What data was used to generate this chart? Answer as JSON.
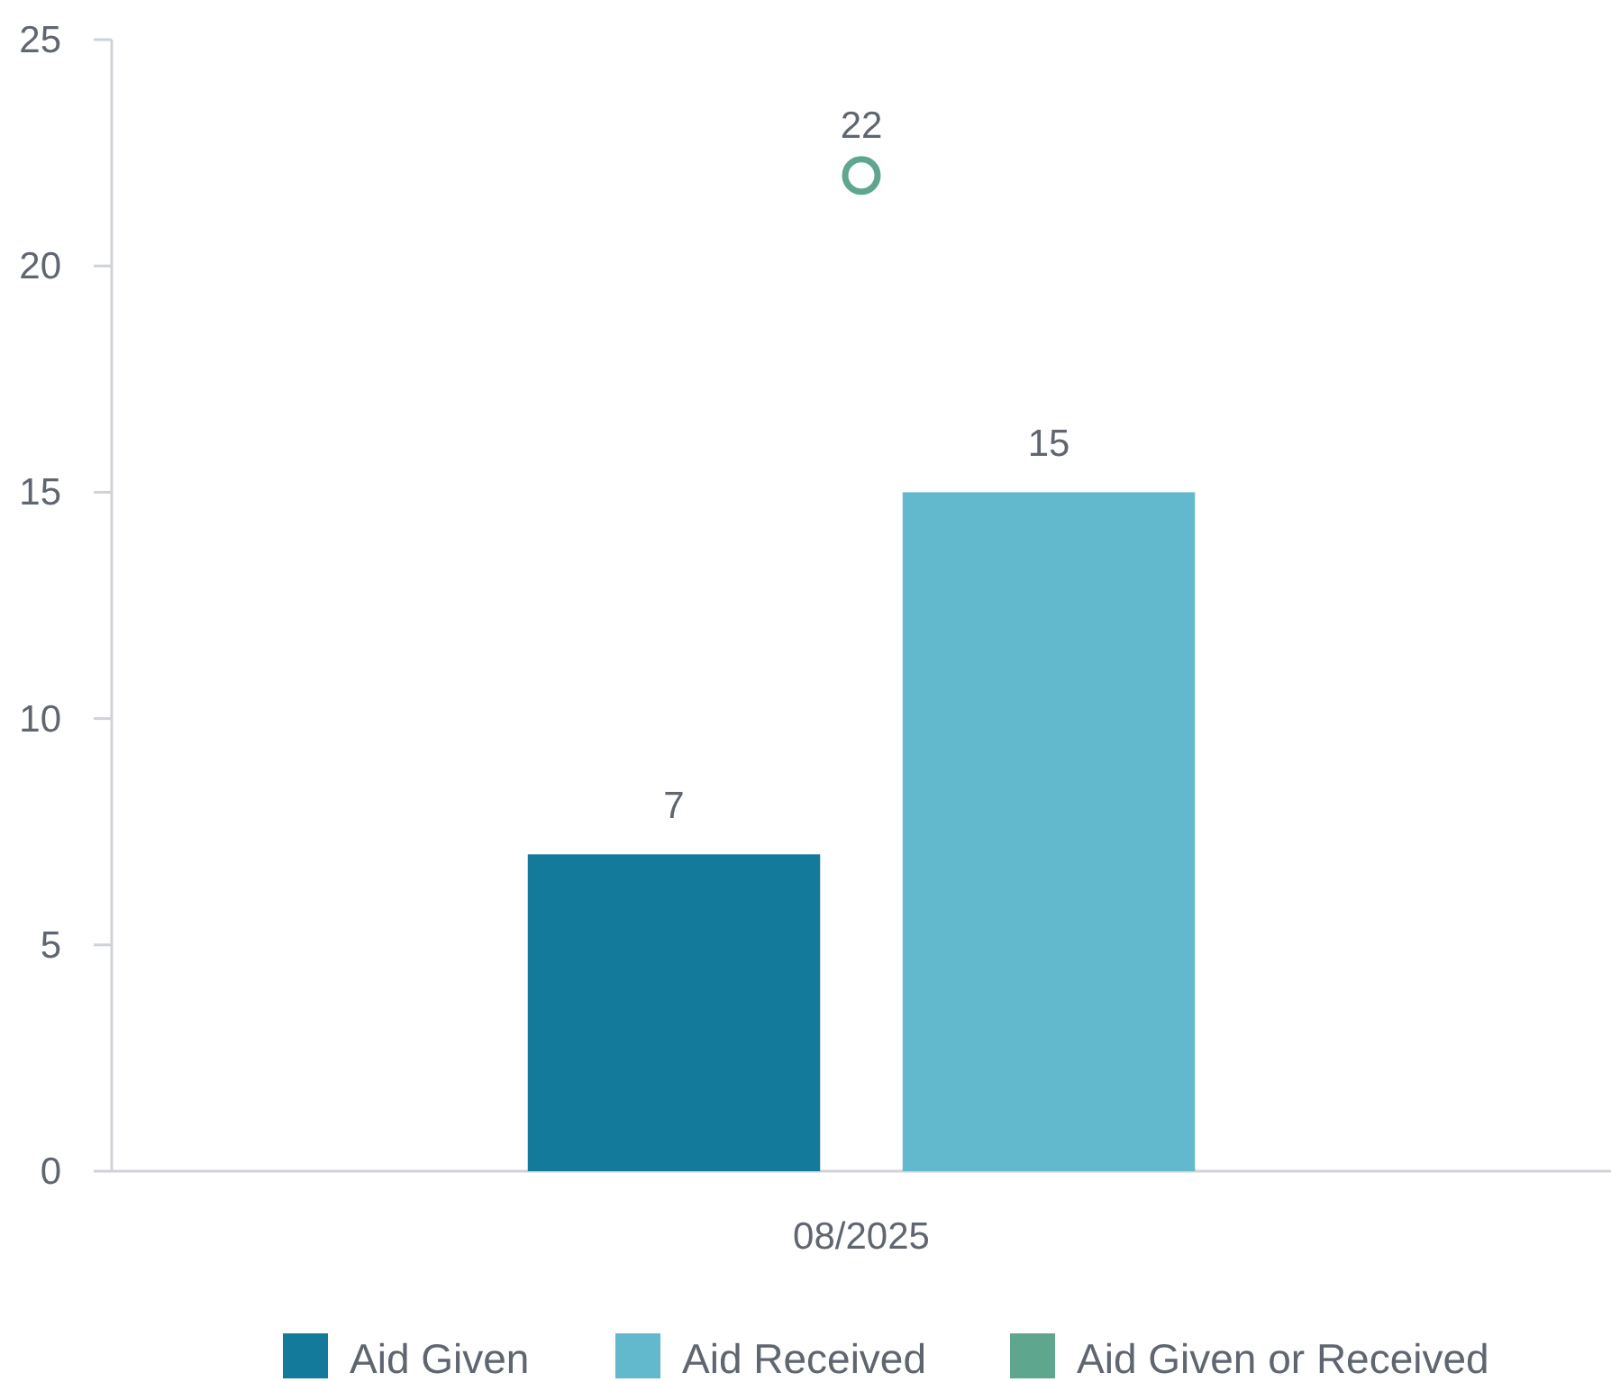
{
  "chart_data": {
    "type": "bar",
    "categories": [
      "08/2025"
    ],
    "series": [
      {
        "name": "Aid Given",
        "color": "#137a9b",
        "values": [
          7
        ]
      },
      {
        "name": "Aid Received",
        "color": "#62b8cc",
        "values": [
          15
        ]
      },
      {
        "name": "Aid Given or Received",
        "color": "#5fa68e",
        "values": [
          22
        ],
        "type": "scatter",
        "x": [
          "08/2025"
        ],
        "marker": "circle"
      }
    ],
    "ylim": [
      0,
      25
    ],
    "yticks": [
      0,
      5,
      10,
      15,
      20,
      25
    ],
    "grid": false,
    "legend": "bottom",
    "data_labels": true
  }
}
